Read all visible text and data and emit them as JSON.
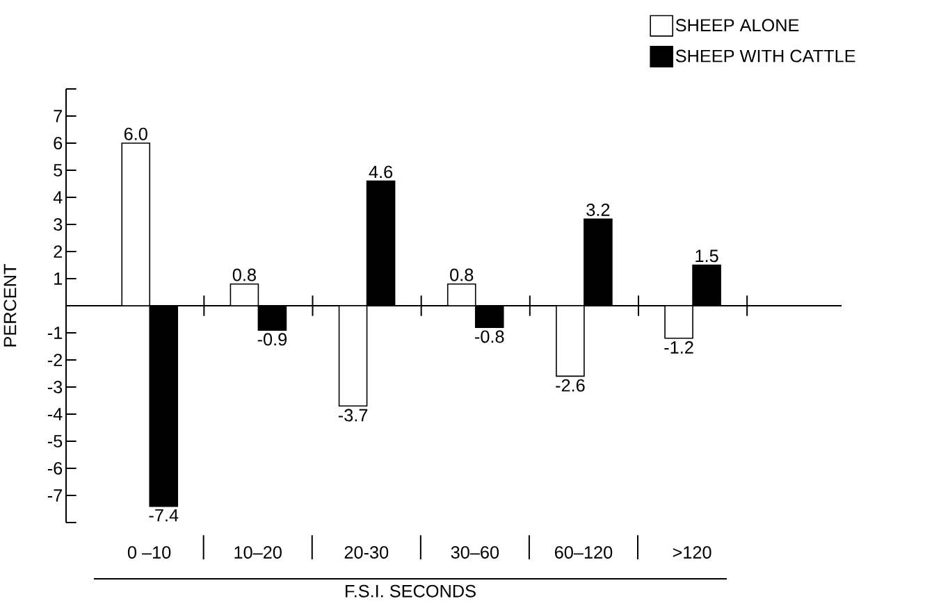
{
  "chart_data": {
    "type": "bar",
    "ylabel": "PERCENT",
    "xlabel": "F.S.I. SECONDS",
    "categories": [
      "0 –10",
      "10–20",
      "20-30",
      "30–60",
      "60–120",
      ">120"
    ],
    "series": [
      {
        "name": "SHEEP ALONE",
        "color": "#ffffff",
        "values": [
          6.0,
          0.8,
          -3.7,
          0.8,
          -2.6,
          -1.2
        ],
        "value_labels": [
          "6.0",
          "0.8",
          "-3.7",
          "0.8",
          "-2.6",
          "-1.2"
        ]
      },
      {
        "name": "SHEEP WITH CATTLE",
        "color": "#000000",
        "values": [
          -7.4,
          -0.9,
          4.6,
          -0.8,
          3.2,
          1.5
        ],
        "value_labels": [
          "-7.4",
          "-0.9",
          "4.6",
          "-0.8",
          "3.2",
          "1.5"
        ]
      }
    ],
    "ylim": [
      -8,
      8
    ],
    "yticks": [
      -7,
      -6,
      -5,
      -4,
      -3,
      -2,
      -1,
      1,
      2,
      3,
      4,
      5,
      6,
      7
    ],
    "legend": "top right"
  }
}
